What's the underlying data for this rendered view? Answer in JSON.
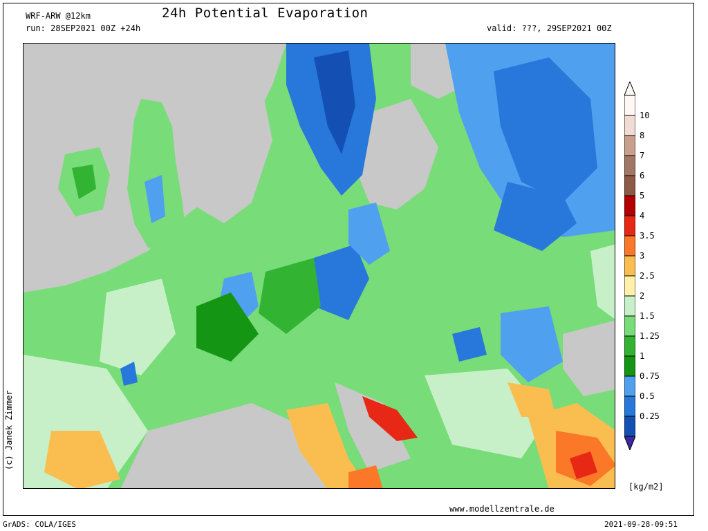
{
  "header": {
    "model": "WRF-ARW @12km",
    "run": "run: 28SEP2021 00Z +24h",
    "title": "24h Potential Evaporation",
    "valid": "valid: ???, 29SEP2021 00Z"
  },
  "footer": {
    "copyright": "(c) Janek Zimmer",
    "website": "www.modellzentrale.de",
    "software": "GrADS: COLA/IGES",
    "timestamp": "2021-09-28-09:51"
  },
  "legend": {
    "unit": "[kg/m2]",
    "levels": [
      {
        "label": "10",
        "color": "#f0dcd2"
      },
      {
        "label": "8",
        "color": "#c8a08c"
      },
      {
        "label": "7",
        "color": "#a07864"
      },
      {
        "label": "6",
        "color": "#8c5a46"
      },
      {
        "label": "5",
        "color": "#b40000"
      },
      {
        "label": "4",
        "color": "#e62814"
      },
      {
        "label": "3.5",
        "color": "#fa7828"
      },
      {
        "label": "3",
        "color": "#fabe50"
      },
      {
        "label": "2.5",
        "color": "#fff0aa"
      },
      {
        "label": "2",
        "color": "#c8f0c8"
      },
      {
        "label": "1.5",
        "color": "#78dc78"
      },
      {
        "label": "1.25",
        "color": "#32b432"
      },
      {
        "label": "1",
        "color": "#149614"
      },
      {
        "label": "0.75",
        "color": "#50a0f0"
      },
      {
        "label": "0.5",
        "color": "#2878dc"
      },
      {
        "label": "0.25",
        "color": "#1450b4"
      }
    ],
    "bottom_color": "#3c28a0",
    "top_color": "#fff8f4"
  },
  "colors": {
    "land_gray": "#c8c8c8",
    "sea_gray": "#c8c8c8"
  }
}
